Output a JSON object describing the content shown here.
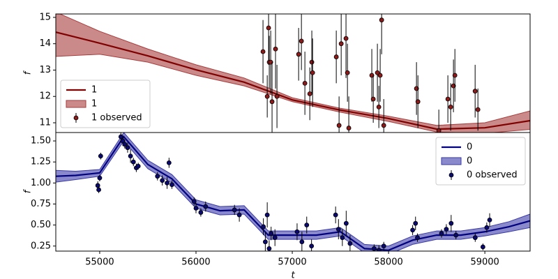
{
  "chart_data": [
    {
      "type": "line",
      "ylabel": "f",
      "legend": "lower left",
      "xlim": [
        54544,
        59470
      ],
      "ylim": [
        10.63,
        15.13
      ],
      "yticks": [
        11,
        12,
        13,
        14,
        15
      ],
      "series": [
        {
          "type": "line",
          "name": "1",
          "color": "#800000",
          "x": [
            54544,
            55000,
            55500,
            56000,
            56500,
            57000,
            57500,
            58000,
            58500,
            59000,
            59470
          ],
          "values": [
            14.44,
            14.02,
            13.54,
            13.01,
            12.54,
            11.87,
            11.48,
            11.16,
            10.76,
            10.81,
            11.08
          ]
        },
        {
          "type": "band",
          "name": "1",
          "color": "#a83c3c",
          "x": [
            54544,
            55000,
            55500,
            56000,
            56500,
            57000,
            57500,
            58000,
            58500,
            59000,
            59470
          ],
          "lower": [
            13.52,
            13.6,
            13.3,
            12.8,
            12.4,
            11.8,
            11.4,
            11.05,
            10.65,
            10.6,
            10.75
          ],
          "upper": [
            15.2,
            14.47,
            13.8,
            13.2,
            12.7,
            11.95,
            11.55,
            11.25,
            10.9,
            11.0,
            11.45
          ]
        },
        {
          "type": "errorbar",
          "name": "1 observed",
          "color": "#8b1a1a",
          "x": [
            56696,
            56740,
            56754,
            56761,
            56776,
            56790,
            56826,
            56841,
            57066,
            57095,
            57131,
            57182,
            57203,
            57211,
            57457,
            57486,
            57508,
            57558,
            57573,
            57587,
            57826,
            57841,
            57884,
            57899,
            57913,
            57928,
            57950,
            58290,
            58305,
            58522,
            58616,
            58645,
            58674,
            58689,
            58899,
            58928
          ],
          "values": [
            13.7,
            12.0,
            14.6,
            13.3,
            13.3,
            11.8,
            13.8,
            12.0,
            13.6,
            14.1,
            12.5,
            12.1,
            13.3,
            12.9,
            13.5,
            10.9,
            14.0,
            14.2,
            12.9,
            10.8,
            12.8,
            11.9,
            12.9,
            11.6,
            12.8,
            14.9,
            10.9,
            12.3,
            11.8,
            10.7,
            11.9,
            11.6,
            12.4,
            12.8,
            12.2,
            11.5
          ],
          "errors": [
            1.2,
            0.8,
            1.4,
            1.0,
            1.2,
            1.5,
            1.5,
            1.2,
            1.0,
            1.1,
            1.2,
            1.0,
            1.2,
            1.3,
            1.0,
            1.1,
            1.2,
            1.5,
            1.1,
            1.2,
            1.0,
            0.9,
            1.1,
            0.8,
            1.0,
            1.3,
            1.0,
            1.0,
            1.0,
            0.8,
            0.9,
            0.9,
            1.0,
            1.0,
            1.0,
            0.8
          ]
        }
      ]
    },
    {
      "type": "line",
      "ylabel": "f",
      "xlabel": "t",
      "legend": "upper right",
      "xlim": [
        54544,
        59470
      ],
      "ylim": [
        0.19,
        1.6
      ],
      "xticks": [
        55000,
        56000,
        57000,
        58000,
        59000
      ],
      "yticks": [
        0.25,
        {
          "value": 0.5,
          "label": "0.50"
        },
        0.75,
        {
          "value": 1,
          "label": "1.00"
        },
        1.25,
        {
          "value": 1.5,
          "label": "1.50"
        }
      ],
      "series": [
        {
          "type": "line",
          "name": "0",
          "color": "#000080",
          "x": [
            54544,
            54750,
            55000,
            55250,
            55500,
            55750,
            56000,
            56250,
            56500,
            56750,
            57000,
            57250,
            57500,
            57750,
            58000,
            58250,
            58500,
            58750,
            59000,
            59250,
            59470
          ],
          "values": [
            1.08,
            1.09,
            1.12,
            1.55,
            1.22,
            1.05,
            0.75,
            0.67,
            0.68,
            0.38,
            0.38,
            0.38,
            0.42,
            0.22,
            0.2,
            0.32,
            0.38,
            0.38,
            0.42,
            0.48,
            0.55
          ]
        },
        {
          "type": "band",
          "name": "0",
          "color": "#3a3aa8",
          "x": [
            54544,
            54750,
            55000,
            55250,
            55500,
            55750,
            56000,
            56250,
            56500,
            56750,
            57000,
            57250,
            57500,
            57750,
            58000,
            58250,
            58500,
            58750,
            59000,
            59250,
            59470
          ],
          "lower": [
            1.01,
            1.04,
            1.08,
            1.5,
            1.17,
            1.0,
            0.7,
            0.62,
            0.63,
            0.33,
            0.33,
            0.33,
            0.37,
            0.17,
            0.15,
            0.27,
            0.33,
            0.33,
            0.37,
            0.42,
            0.47
          ],
          "upper": [
            1.15,
            1.14,
            1.16,
            1.6,
            1.27,
            1.1,
            0.8,
            0.72,
            0.73,
            0.43,
            0.43,
            0.43,
            0.47,
            0.27,
            0.25,
            0.37,
            0.43,
            0.43,
            0.47,
            0.54,
            0.63
          ]
        },
        {
          "type": "errorbar",
          "name": "0 observed",
          "color": "#0a0a6e",
          "x": [
            54980,
            54990,
            55000,
            55010,
            55220,
            55240,
            55260,
            55290,
            55320,
            55350,
            55380,
            55400,
            55600,
            55650,
            55700,
            55720,
            55750,
            55980,
            56000,
            56050,
            56100,
            56400,
            56450,
            56700,
            56720,
            56740,
            56760,
            56780,
            56820,
            57050,
            57100,
            57150,
            57200,
            57450,
            57480,
            57520,
            57560,
            57600,
            57850,
            57900,
            57950,
            58250,
            58280,
            58300,
            58550,
            58600,
            58650,
            58700,
            58900,
            58980,
            59020,
            59050
          ],
          "values": [
            0.97,
            0.92,
            1.06,
            1.32,
            1.55,
            1.5,
            1.46,
            1.42,
            1.32,
            1.25,
            1.18,
            1.2,
            1.08,
            1.03,
            1.0,
            1.24,
            0.98,
            0.78,
            0.7,
            0.65,
            0.72,
            0.68,
            0.62,
            0.48,
            0.3,
            0.62,
            0.22,
            0.4,
            0.35,
            0.42,
            0.3,
            0.5,
            0.25,
            0.62,
            0.45,
            0.35,
            0.52,
            0.28,
            0.22,
            0.2,
            0.25,
            0.44,
            0.52,
            0.35,
            0.4,
            0.45,
            0.52,
            0.38,
            0.35,
            0.24,
            0.47,
            0.56
          ],
          "errors": [
            0.05,
            0.04,
            0.04,
            0.04,
            0.05,
            0.06,
            0.05,
            0.06,
            0.08,
            0.05,
            0.05,
            0.04,
            0.05,
            0.06,
            0.07,
            0.06,
            0.05,
            0.05,
            0.06,
            0.05,
            0.06,
            0.06,
            0.08,
            0.1,
            0.12,
            0.15,
            0.1,
            0.08,
            0.1,
            0.1,
            0.12,
            0.1,
            0.08,
            0.1,
            0.12,
            0.1,
            0.15,
            0.1,
            0.05,
            0.06,
            0.05,
            0.06,
            0.08,
            0.05,
            0.05,
            0.06,
            0.1,
            0.05,
            0.05,
            0.04,
            0.06,
            0.08
          ]
        }
      ]
    }
  ]
}
